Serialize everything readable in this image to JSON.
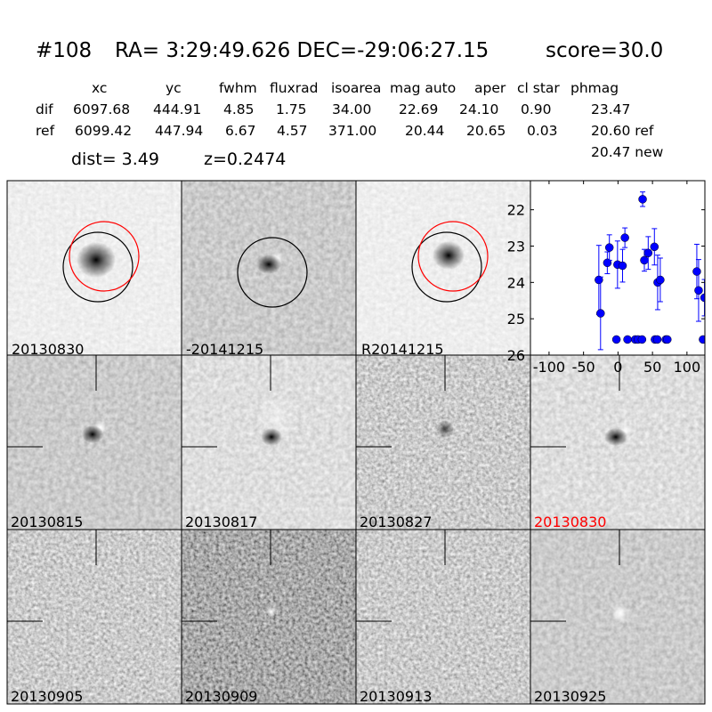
{
  "header": {
    "id": "#108",
    "coords": "RA= 3:29:49.626 DEC=-29:06:27.15",
    "score": "score=30.0"
  },
  "table": {
    "columns": [
      "xc",
      "yc",
      "fwhm",
      "fluxrad",
      "isoarea",
      "mag auto",
      "aper",
      "cl star",
      "phmag"
    ],
    "rows": [
      {
        "label": "dif",
        "values": [
          "6097.68",
          "444.91",
          "4.85",
          "1.75",
          "34.00",
          "22.69",
          "24.10",
          "0.90",
          "23.47"
        ]
      },
      {
        "label": "ref",
        "values": [
          "6099.42",
          "447.94",
          "6.67",
          "4.57",
          "371.00",
          "20.44",
          "20.65",
          "0.03",
          "20.60 ref"
        ]
      }
    ],
    "phmag_new": "20.47 new",
    "dist": "dist=  3.49",
    "z": "z=0.2474"
  },
  "stamps": [
    {
      "label": "20130830",
      "circles": [
        "black",
        "red"
      ]
    },
    {
      "label": "-20141215",
      "circles": [
        "black"
      ]
    },
    {
      "label": "R20141215",
      "circles": [
        "black",
        "red"
      ]
    },
    {
      "label": "20130815"
    },
    {
      "label": "20130817"
    },
    {
      "label": "20130827"
    },
    {
      "label": "20130830",
      "color": "#ff0000"
    },
    {
      "label": "20130905"
    },
    {
      "label": "20130909"
    },
    {
      "label": "20130913"
    },
    {
      "label": "20130925"
    }
  ],
  "chart_data": {
    "type": "scatter",
    "title": "",
    "xlabel": "",
    "ylabel": "",
    "xlim": [
      -127,
      126
    ],
    "ylim": [
      26,
      21.2
    ],
    "y_inverted": true,
    "xticks": [
      "-100",
      "-50",
      "0",
      "50",
      "100"
    ],
    "xtick_values": [
      -100,
      -50,
      0,
      50,
      100
    ],
    "yticks": [
      "22",
      "23",
      "24",
      "25",
      "26"
    ],
    "ytick_values": [
      22,
      23,
      24,
      25,
      26
    ],
    "grid": false,
    "marker_color": "#0000ff",
    "points": [
      {
        "x": -27.8,
        "y": 23.93,
        "err": 0.95
      },
      {
        "x": -25.3,
        "y": 24.85,
        "err": 1.0
      },
      {
        "x": -15.5,
        "y": 23.46,
        "err": 0.3
      },
      {
        "x": -12.5,
        "y": 23.04,
        "err": 0.35
      },
      {
        "x": -2.3,
        "y": 25.57,
        "err": 0
      },
      {
        "x": -0.7,
        "y": 23.51,
        "err": 0.65
      },
      {
        "x": 6.6,
        "y": 23.54,
        "err": 0.45
      },
      {
        "x": 10.0,
        "y": 22.77,
        "err": 0.27
      },
      {
        "x": 13.8,
        "y": 25.57,
        "err": 0
      },
      {
        "x": 25.0,
        "y": 25.57,
        "err": 0
      },
      {
        "x": 28.9,
        "y": 25.57,
        "err": 0
      },
      {
        "x": 34.8,
        "y": 25.57,
        "err": 0
      },
      {
        "x": 35.7,
        "y": 21.71,
        "err": 0.2
      },
      {
        "x": 38.2,
        "y": 23.39,
        "err": 0.3
      },
      {
        "x": 43.8,
        "y": 23.19,
        "err": 0.45
      },
      {
        "x": 52.8,
        "y": 23.02,
        "err": 0.5
      },
      {
        "x": 53.6,
        "y": 25.57,
        "err": 0
      },
      {
        "x": 57.0,
        "y": 25.57,
        "err": 0
      },
      {
        "x": 57.5,
        "y": 24.0,
        "err": 0.75
      },
      {
        "x": 61.3,
        "y": 23.93,
        "err": 0.6
      },
      {
        "x": 69.4,
        "y": 25.57,
        "err": 0
      },
      {
        "x": 71.5,
        "y": 25.57,
        "err": 0
      },
      {
        "x": 114.3,
        "y": 23.7,
        "err": 0.75
      },
      {
        "x": 116.9,
        "y": 24.22,
        "err": 0.85
      },
      {
        "x": 123.3,
        "y": 25.57,
        "err": 0
      },
      {
        "x": 125.4,
        "y": 24.42,
        "err": 0.5
      }
    ]
  }
}
